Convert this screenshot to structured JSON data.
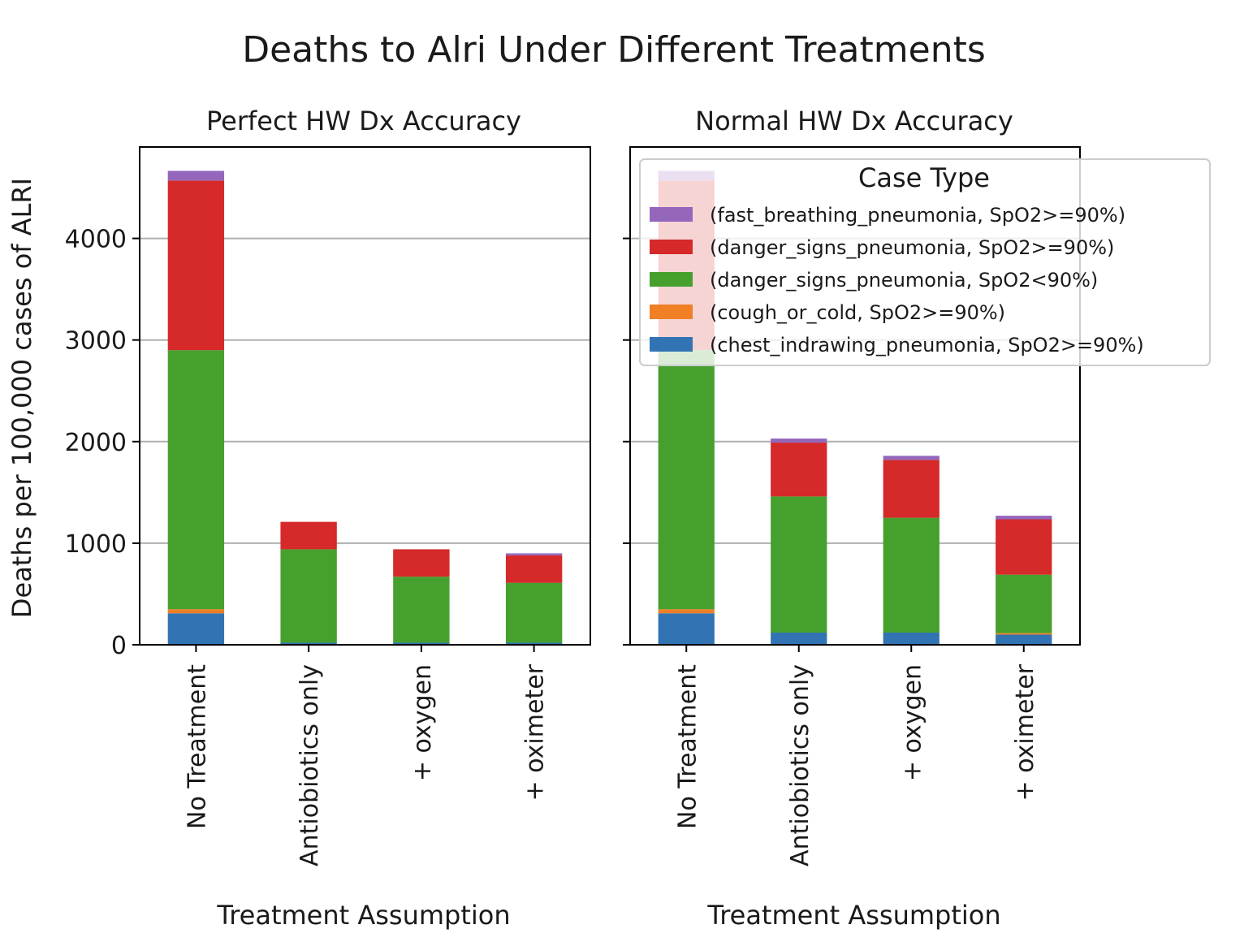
{
  "figure": {
    "title": "Deaths to Alri Under Different Treatments"
  },
  "chart_data": [
    {
      "type": "bar",
      "stacked": true,
      "title": "Perfect HW Dx Accuracy",
      "xlabel": "Treatment Assumption",
      "ylabel": "Deaths per 100,000 cases of ALRI",
      "ylim": [
        0,
        4900
      ],
      "yticks": [
        0,
        1000,
        2000,
        3000,
        4000
      ],
      "grid": "horizontal",
      "categories": [
        "No Treatment",
        "Antiobiotics only",
        "+ oxygen",
        "+ oximeter"
      ],
      "series": [
        {
          "name": "(chest_indrawing_pneumonia, SpO2>=90%)",
          "color": "#3274b3",
          "values": [
            310,
            20,
            20,
            20
          ]
        },
        {
          "name": "(cough_or_cold, SpO2>=90%)",
          "color": "#f07f25",
          "values": [
            40,
            0,
            0,
            0
          ]
        },
        {
          "name": "(danger_signs_pneumonia, SpO2<90%)",
          "color": "#46a02d",
          "values": [
            2550,
            920,
            650,
            590
          ]
        },
        {
          "name": "(danger_signs_pneumonia, SpO2>=90%)",
          "color": "#d5292a",
          "values": [
            1670,
            270,
            270,
            270
          ]
        },
        {
          "name": "(fast_breathing_pneumonia, SpO2>=90%)",
          "color": "#9467bd",
          "values": [
            95,
            0,
            0,
            20
          ]
        }
      ]
    },
    {
      "type": "bar",
      "stacked": true,
      "title": "Normal HW Dx Accuracy",
      "xlabel": "Treatment Assumption",
      "ylabel": "",
      "ylim": [
        0,
        4900
      ],
      "yticks": [
        0,
        1000,
        2000,
        3000,
        4000
      ],
      "grid": "horizontal",
      "categories": [
        "No Treatment",
        "Antiobiotics only",
        "+ oxygen",
        "+ oximeter"
      ],
      "series": [
        {
          "name": "(chest_indrawing_pneumonia, SpO2>=90%)",
          "color": "#3274b3",
          "values": [
            310,
            120,
            120,
            100
          ]
        },
        {
          "name": "(cough_or_cold, SpO2>=90%)",
          "color": "#f07f25",
          "values": [
            40,
            0,
            0,
            15
          ]
        },
        {
          "name": "(danger_signs_pneumonia, SpO2<90%)",
          "color": "#46a02d",
          "values": [
            2550,
            1340,
            1130,
            575
          ]
        },
        {
          "name": "(danger_signs_pneumonia, SpO2>=90%)",
          "color": "#d5292a",
          "values": [
            1670,
            530,
            570,
            545
          ]
        },
        {
          "name": "(fast_breathing_pneumonia, SpO2>=90%)",
          "color": "#9467bd",
          "values": [
            95,
            40,
            40,
            35
          ]
        }
      ],
      "legend": {
        "title": "Case Type",
        "placement": "upper-right",
        "entries": [
          {
            "label": "(fast_breathing_pneumonia, SpO2>=90%)",
            "color": "#9467bd"
          },
          {
            "label": "(danger_signs_pneumonia, SpO2>=90%)",
            "color": "#d5292a"
          },
          {
            "label": "(danger_signs_pneumonia, SpO2<90%)",
            "color": "#46a02d"
          },
          {
            "label": "(cough_or_cold, SpO2>=90%)",
            "color": "#f07f25"
          },
          {
            "label": "(chest_indrawing_pneumonia, SpO2>=90%)",
            "color": "#3274b3"
          }
        ]
      }
    }
  ]
}
